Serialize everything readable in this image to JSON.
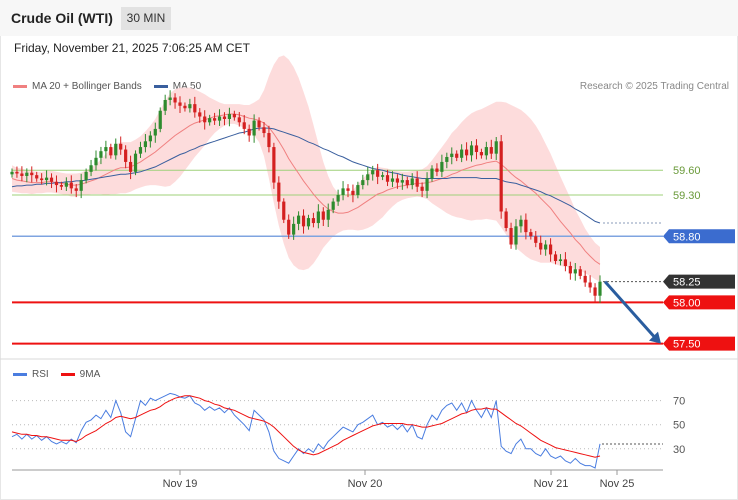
{
  "header": {
    "title": "Crude Oil (WTI)",
    "interval": "30 MIN",
    "datetime": "Friday, November 21, 2025 7:06:25 AM CET"
  },
  "legend": {
    "ma20_label": "MA 20 + Bollinger Bands",
    "ma50_label": "MA 50",
    "rsi_label": "RSI",
    "rsi_ma_label": "9MA"
  },
  "copyright": "Research © 2025 Trading Central",
  "colors": {
    "ma20": "#f08080",
    "bollinger_fill": "#fdd8d8",
    "ma50": "#3a5f9e",
    "candle_up": "#2e8b2e",
    "candle_down": "#d42020",
    "support": "#ee1111",
    "pivot": "#3b6ccf",
    "resistance": "#9fd07a",
    "last_price": "#333333",
    "rsi": "#4a7de0",
    "rsi_ma": "#ee1111",
    "arrow": "#2a5d9f"
  },
  "chart_data": [
    {
      "type": "candlestick",
      "x_ticks": [
        "Nov 19",
        "Nov 20",
        "Nov 21",
        "Nov 25"
      ],
      "ylim": [
        57.35,
        60.45
      ],
      "levels": [
        {
          "value": 59.6,
          "label": "59.60",
          "kind": "resistance"
        },
        {
          "value": 59.3,
          "label": "59.30",
          "kind": "resistance"
        },
        {
          "value": 58.8,
          "label": "58.80",
          "kind": "pivot"
        },
        {
          "value": 58.25,
          "label": "58.25",
          "kind": "last"
        },
        {
          "value": 58.0,
          "label": "58.00",
          "kind": "support"
        },
        {
          "value": 57.5,
          "label": "57.50",
          "kind": "support"
        }
      ],
      "close": [
        59.58,
        59.56,
        59.53,
        59.57,
        59.54,
        59.5,
        59.48,
        59.51,
        59.46,
        59.42,
        59.4,
        59.45,
        59.38,
        59.35,
        59.48,
        59.58,
        59.66,
        59.75,
        59.83,
        59.88,
        59.78,
        59.92,
        59.85,
        59.7,
        59.58,
        59.8,
        59.88,
        59.95,
        60.02,
        60.1,
        60.32,
        60.45,
        60.48,
        60.42,
        60.38,
        60.35,
        60.4,
        60.3,
        60.25,
        60.18,
        60.23,
        60.2,
        60.25,
        60.22,
        60.28,
        60.24,
        60.18,
        60.1,
        60.02,
        60.2,
        60.12,
        60.05,
        59.88,
        59.45,
        59.22,
        59.0,
        58.82,
        58.95,
        59.05,
        58.92,
        59.02,
        58.96,
        59.1,
        59.0,
        59.12,
        59.22,
        59.3,
        59.38,
        59.35,
        59.3,
        59.42,
        59.48,
        59.55,
        59.6,
        59.52,
        59.54,
        59.46,
        59.5,
        59.45,
        59.48,
        59.42,
        59.5,
        59.4,
        59.35,
        59.5,
        59.62,
        59.58,
        59.7,
        59.76,
        59.8,
        59.75,
        59.85,
        59.78,
        59.9,
        59.82,
        59.78,
        59.88,
        59.8,
        59.95,
        59.1,
        58.9,
        58.7,
        58.92,
        59.0,
        58.85,
        58.8,
        58.72,
        58.64,
        58.7,
        58.58,
        58.5,
        58.52,
        58.44,
        58.35,
        58.4,
        58.32,
        58.24,
        58.18,
        58.08,
        58.25
      ],
      "ma20": [
        59.5,
        59.48,
        59.47,
        59.46,
        59.45,
        59.45,
        59.45,
        59.46,
        59.46,
        59.45,
        59.44,
        59.43,
        59.42,
        59.42,
        59.43,
        59.45,
        59.47,
        59.49,
        59.52,
        59.55,
        59.58,
        59.61,
        59.63,
        59.63,
        59.64,
        59.67,
        59.7,
        59.74,
        59.78,
        59.82,
        59.87,
        59.92,
        59.97,
        60.02,
        60.06,
        60.1,
        60.14,
        60.17,
        60.19,
        60.21,
        60.23,
        60.25,
        60.26,
        60.27,
        60.28,
        60.28,
        60.27,
        60.25,
        60.23,
        60.22,
        60.2,
        60.17,
        60.12,
        60.04,
        59.95,
        59.85,
        59.74,
        59.65,
        59.56,
        59.47,
        59.39,
        59.31,
        59.24,
        59.18,
        59.13,
        59.1,
        59.08,
        59.08,
        59.09,
        59.12,
        59.15,
        59.19,
        59.23,
        59.27,
        59.31,
        59.33,
        59.36,
        59.38,
        59.4,
        59.41,
        59.42,
        59.43,
        59.44,
        59.44,
        59.45,
        59.46,
        59.48,
        59.5,
        59.52,
        59.55,
        59.57,
        59.6,
        59.62,
        59.64,
        59.66,
        59.67,
        59.69,
        59.7,
        59.71,
        59.67,
        59.62,
        59.56,
        59.51,
        59.47,
        59.42,
        59.37,
        59.32,
        59.26,
        59.2,
        59.14,
        59.06,
        58.98,
        58.91,
        58.84,
        58.76,
        58.7,
        58.62,
        58.56,
        58.5,
        58.46
      ],
      "ma50": [
        59.4,
        59.41,
        59.41,
        59.42,
        59.42,
        59.43,
        59.43,
        59.44,
        59.44,
        59.45,
        59.45,
        59.46,
        59.46,
        59.47,
        59.47,
        59.48,
        59.49,
        59.5,
        59.51,
        59.52,
        59.53,
        59.54,
        59.55,
        59.55,
        59.56,
        59.57,
        59.58,
        59.6,
        59.62,
        59.64,
        59.67,
        59.7,
        59.73,
        59.76,
        59.79,
        59.81,
        59.84,
        59.86,
        59.89,
        59.91,
        59.93,
        59.95,
        59.97,
        59.99,
        60.01,
        60.03,
        60.05,
        60.06,
        60.08,
        60.1,
        60.11,
        60.11,
        60.11,
        60.1,
        60.08,
        60.06,
        60.04,
        60.02,
        60.0,
        59.97,
        59.94,
        59.92,
        59.89,
        59.86,
        59.84,
        59.81,
        59.78,
        59.76,
        59.73,
        59.7,
        59.68,
        59.66,
        59.64,
        59.62,
        59.61,
        59.6,
        59.58,
        59.57,
        59.56,
        59.54,
        59.53,
        59.52,
        59.51,
        59.5,
        59.5,
        59.5,
        59.5,
        59.5,
        59.5,
        59.51,
        59.51,
        59.51,
        59.51,
        59.51,
        59.51,
        59.5,
        59.5,
        59.5,
        59.5,
        59.48,
        59.46,
        59.45,
        59.44,
        59.42,
        59.4,
        59.38,
        59.36,
        59.34,
        59.31,
        59.29,
        59.26,
        59.23,
        59.2,
        59.17,
        59.13,
        59.1,
        59.06,
        59.02,
        58.98,
        58.96
      ],
      "bollinger_width": [
        0.16,
        0.15,
        0.15,
        0.14,
        0.14,
        0.13,
        0.13,
        0.13,
        0.13,
        0.13,
        0.13,
        0.13,
        0.14,
        0.14,
        0.14,
        0.15,
        0.16,
        0.18,
        0.21,
        0.25,
        0.27,
        0.3,
        0.31,
        0.31,
        0.3,
        0.3,
        0.31,
        0.33,
        0.36,
        0.4,
        0.46,
        0.52,
        0.56,
        0.56,
        0.54,
        0.5,
        0.46,
        0.41,
        0.36,
        0.31,
        0.25,
        0.2,
        0.16,
        0.13,
        0.12,
        0.12,
        0.13,
        0.14,
        0.16,
        0.2,
        0.26,
        0.4,
        0.62,
        0.84,
        1.02,
        1.14,
        1.2,
        1.2,
        1.16,
        1.08,
        0.98,
        0.84,
        0.68,
        0.52,
        0.4,
        0.3,
        0.24,
        0.21,
        0.21,
        0.24,
        0.28,
        0.31,
        0.33,
        0.34,
        0.33,
        0.3,
        0.26,
        0.22,
        0.19,
        0.17,
        0.16,
        0.16,
        0.16,
        0.17,
        0.2,
        0.26,
        0.32,
        0.38,
        0.44,
        0.5,
        0.54,
        0.58,
        0.62,
        0.65,
        0.66,
        0.67,
        0.68,
        0.7,
        0.72,
        0.76,
        0.8,
        0.83,
        0.85,
        0.86,
        0.86,
        0.85,
        0.82,
        0.78,
        0.72,
        0.66,
        0.6,
        0.54,
        0.48,
        0.42,
        0.36,
        0.31,
        0.27,
        0.24,
        0.22,
        0.21
      ]
    },
    {
      "type": "line",
      "title": "RSI",
      "y_ticks": [
        70,
        50,
        30
      ],
      "ylim": [
        14,
        83
      ],
      "series": [
        {
          "name": "RSI",
          "values": [
            40,
            42,
            38,
            42,
            38,
            41,
            37,
            40,
            36,
            34,
            36,
            34,
            38,
            35,
            45,
            52,
            54,
            58,
            55,
            62,
            56,
            70,
            60,
            44,
            40,
            55,
            70,
            66,
            72,
            70,
            72,
            74,
            76,
            75,
            73,
            72,
            74,
            68,
            66,
            62,
            65,
            62,
            64,
            60,
            64,
            58,
            54,
            50,
            45,
            62,
            58,
            54,
            44,
            28,
            22,
            20,
            18,
            24,
            30,
            26,
            30,
            27,
            34,
            30,
            36,
            40,
            44,
            48,
            46,
            44,
            50,
            52,
            55,
            58,
            50,
            52,
            48,
            50,
            46,
            50,
            44,
            50,
            40,
            38,
            50,
            58,
            54,
            62,
            66,
            68,
            62,
            68,
            60,
            70,
            62,
            56,
            64,
            56,
            70,
            32,
            28,
            26,
            34,
            38,
            30,
            30,
            26,
            24,
            30,
            24,
            22,
            24,
            20,
            18,
            22,
            18,
            16,
            16,
            14,
            34
          ]
        },
        {
          "name": "9MA",
          "values": [
            44,
            43,
            42,
            42,
            41,
            41,
            40,
            40,
            39,
            38,
            37,
            37,
            37,
            36,
            38,
            41,
            43,
            45,
            48,
            51,
            53,
            56,
            57,
            56,
            55,
            56,
            58,
            60,
            62,
            63,
            65,
            68,
            70,
            72,
            73,
            74,
            74,
            73,
            72,
            70,
            69,
            67,
            66,
            64,
            63,
            62,
            60,
            58,
            56,
            55,
            54,
            53,
            51,
            48,
            44,
            40,
            36,
            32,
            29,
            27,
            26,
            25,
            26,
            28,
            30,
            32,
            34,
            37,
            39,
            41,
            43,
            45,
            47,
            49,
            50,
            51,
            51,
            51,
            51,
            51,
            50,
            50,
            49,
            48,
            48,
            49,
            50,
            51,
            53,
            55,
            57,
            59,
            60,
            62,
            63,
            63,
            64,
            63,
            63,
            60,
            57,
            54,
            51,
            49,
            46,
            43,
            40,
            37,
            35,
            33,
            31,
            30,
            29,
            28,
            27,
            26,
            25,
            24,
            23,
            24
          ]
        }
      ]
    }
  ]
}
